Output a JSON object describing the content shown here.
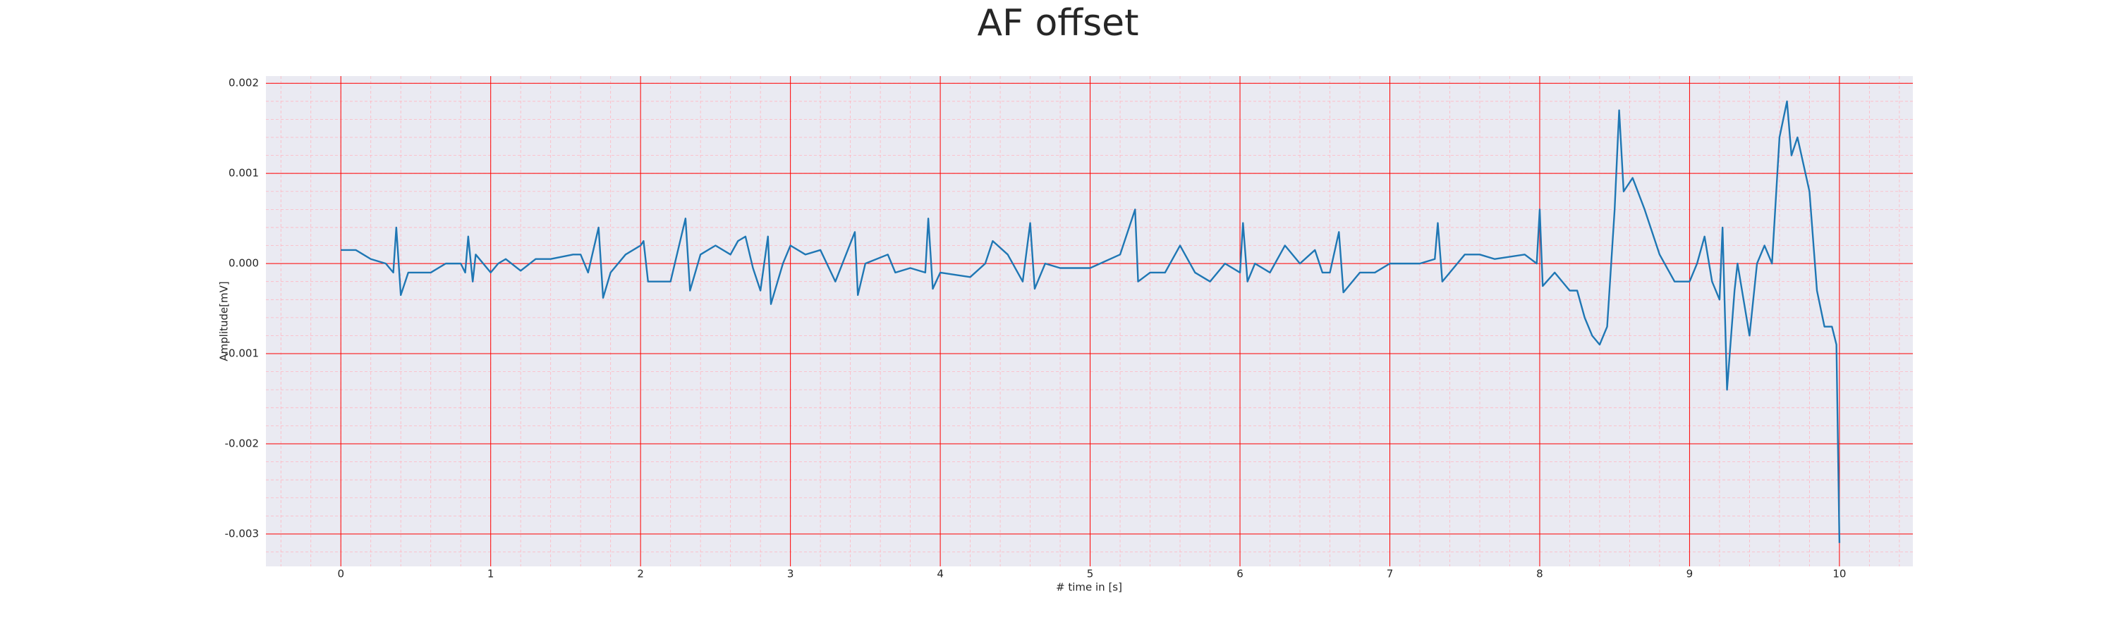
{
  "chart_data": {
    "type": "line",
    "title": "AF offset",
    "xlabel": "# time in [s]",
    "ylabel": "Amplitude[mV]",
    "xlim": [
      -0.5,
      10.49
    ],
    "ylim": [
      -0.00336,
      0.00208
    ],
    "xticks": [
      0,
      1,
      2,
      3,
      4,
      5,
      6,
      7,
      8,
      9,
      10
    ],
    "yticks": [
      -0.003,
      -0.002,
      -0.001,
      {
        "value": 0,
        "label": "0.000"
      },
      0.001,
      0.002
    ],
    "grid": true,
    "minor_grid": true,
    "grid_color": "#ff0000",
    "minor_grid_color": "#ffb6c1",
    "background": "#eaeaf2",
    "series": [
      {
        "color": "#1f77b4",
        "x": [
          0,
          0.1,
          0.2,
          0.3,
          0.35,
          0.37,
          0.4,
          0.45,
          0.6,
          0.7,
          0.8,
          0.83,
          0.85,
          0.88,
          0.9,
          1.0,
          1.05,
          1.1,
          1.2,
          1.3,
          1.4,
          1.55,
          1.6,
          1.65,
          1.72,
          1.75,
          1.8,
          1.9,
          2.0,
          2.02,
          2.05,
          2.2,
          2.3,
          2.33,
          2.4,
          2.5,
          2.6,
          2.65,
          2.7,
          2.75,
          2.8,
          2.85,
          2.87,
          2.95,
          3.0,
          3.1,
          3.2,
          3.3,
          3.43,
          3.45,
          3.5,
          3.65,
          3.7,
          3.8,
          3.9,
          3.92,
          3.95,
          4.0,
          4.2,
          4.3,
          4.35,
          4.45,
          4.55,
          4.6,
          4.63,
          4.7,
          4.8,
          5.0,
          5.2,
          5.3,
          5.32,
          5.4,
          5.5,
          5.6,
          5.7,
          5.8,
          5.9,
          6.0,
          6.02,
          6.05,
          6.1,
          6.2,
          6.3,
          6.4,
          6.5,
          6.55,
          6.6,
          6.66,
          6.69,
          6.8,
          6.9,
          7.0,
          7.2,
          7.3,
          7.32,
          7.35,
          7.5,
          7.6,
          7.7,
          7.9,
          7.98,
          8.0,
          8.02,
          8.1,
          8.2,
          8.25,
          8.3,
          8.35,
          8.4,
          8.45,
          8.5,
          8.53,
          8.56,
          8.62,
          8.7,
          8.8,
          8.9,
          9.0,
          9.05,
          9.1,
          9.15,
          9.2,
          9.22,
          9.25,
          9.3,
          9.32,
          9.4,
          9.45,
          9.5,
          9.55,
          9.6,
          9.65,
          9.68,
          9.72,
          9.8,
          9.85,
          9.9,
          9.95,
          9.98,
          10.0
        ],
        "values": [
          0.00015,
          0.00015,
          5e-05,
          0,
          -0.0001,
          0.0004,
          -0.00035,
          -0.0001,
          -0.0001,
          0,
          0,
          -0.0001,
          0.0003,
          -0.0002,
          0.0001,
          -0.0001,
          0,
          5e-05,
          -8e-05,
          5e-05,
          5e-05,
          0.0001,
          0.0001,
          -0.0001,
          0.0004,
          -0.00038,
          -0.0001,
          0.0001,
          0.0002,
          0.00025,
          -0.0002,
          -0.0002,
          0.0005,
          -0.0003,
          0.0001,
          0.0002,
          0.0001,
          0.00025,
          0.0003,
          -5e-05,
          -0.0003,
          0.0003,
          -0.00045,
          0,
          0.0002,
          0.0001,
          0.00015,
          -0.0002,
          0.00035,
          -0.00035,
          0,
          0.0001,
          -0.0001,
          -5e-05,
          -0.0001,
          0.0005,
          -0.00028,
          -0.0001,
          -0.00015,
          0,
          0.00025,
          0.0001,
          -0.0002,
          0.00045,
          -0.00028,
          0,
          -5e-05,
          -5e-05,
          0.0001,
          0.0006,
          -0.0002,
          -0.0001,
          -0.0001,
          0.0002,
          -0.0001,
          -0.0002,
          0,
          -0.0001,
          0.00045,
          -0.0002,
          0,
          -0.0001,
          0.0002,
          0,
          0.00015,
          -0.0001,
          -0.0001,
          0.00035,
          -0.00032,
          -0.0001,
          -0.0001,
          0,
          0,
          5e-05,
          0.00045,
          -0.0002,
          0.0001,
          0.0001,
          5e-05,
          0.0001,
          0,
          0.0006,
          -0.00025,
          -0.0001,
          -0.0003,
          -0.0003,
          -0.0006,
          -0.0008,
          -0.0009,
          -0.0007,
          0.0006,
          0.0017,
          0.0008,
          0.00095,
          0.0006,
          0.0001,
          -0.0002,
          -0.0002,
          0,
          0.0003,
          -0.0002,
          -0.0004,
          0.0004,
          -0.0014,
          -0.0003,
          0,
          -0.0008,
          0,
          0.0002,
          0,
          0.0014,
          0.0018,
          0.0012,
          0.0014,
          0.0008,
          -0.0003,
          -0.0007,
          -0.0007,
          -0.0009,
          -0.0031
        ]
      }
    ]
  }
}
